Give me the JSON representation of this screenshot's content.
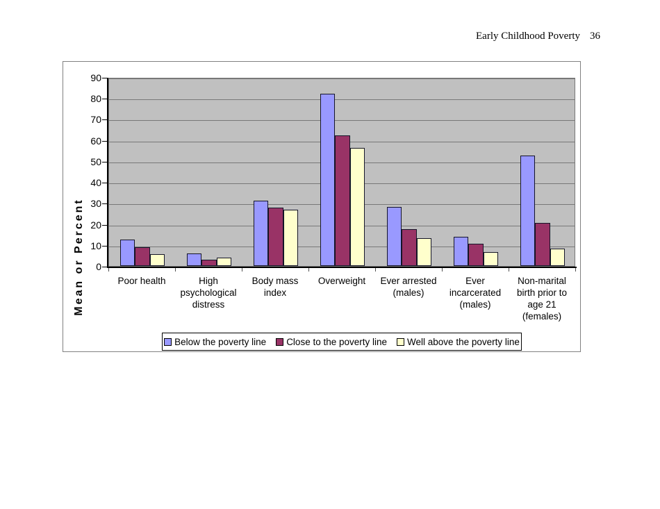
{
  "page": {
    "header": {
      "title": "Early Childhood Poverty",
      "page_number": "36"
    }
  },
  "chart_data": {
    "type": "bar",
    "title": "",
    "xlabel": "",
    "ylabel": "Mean or Percent",
    "ylim": [
      0,
      90
    ],
    "yticks": [
      0,
      10,
      20,
      30,
      40,
      50,
      60,
      70,
      80,
      90
    ],
    "grid": true,
    "legend_position": "bottom-center",
    "categories": [
      "Poor health",
      "High psychological distress",
      "Body mass index",
      "Overweight",
      "Ever arrested (males)",
      "Ever incarcerated (males)",
      "Non-marital birth prior to age 21 (females)"
    ],
    "series": [
      {
        "name": "Below the poverty line",
        "color": "#9999ff",
        "values": [
          12.7,
          6.0,
          31.0,
          82.0,
          28.3,
          13.9,
          52.5
        ]
      },
      {
        "name": "Close to the poverty line",
        "color": "#993366",
        "values": [
          9.0,
          3.1,
          27.7,
          62.3,
          17.5,
          10.7,
          20.5
        ]
      },
      {
        "name": "Well above the poverty line",
        "color": "#ffffcc",
        "values": [
          5.6,
          3.9,
          26.8,
          56.2,
          13.3,
          6.5,
          8.2
        ]
      }
    ],
    "colors": {
      "plot_background": "#c0c0c0",
      "gridline": "#787878",
      "bar_border": "#141428",
      "axis": "#000000"
    }
  }
}
